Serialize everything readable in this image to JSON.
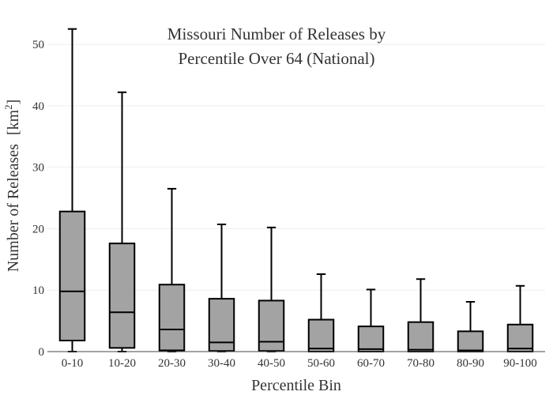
{
  "chart_data": {
    "type": "box",
    "title": [
      "Missouri Number of Releases by",
      "Percentile Over 64 (National)"
    ],
    "xlabel": "Percentile Bin",
    "ylabel": "Number of Releases",
    "ylabel_unit": "[km",
    "ylabel_unit_sup": "2",
    "ylabel_unit_close": "]",
    "ylim": [
      0,
      54
    ],
    "yticks": [
      0,
      10,
      20,
      30,
      40,
      50
    ],
    "grid": true,
    "categories": [
      "0-10",
      "10-20",
      "20-30",
      "30-40",
      "40-50",
      "50-60",
      "60-70",
      "70-80",
      "80-90",
      "90-100"
    ],
    "boxes": [
      {
        "min": 0,
        "q1": 1.8,
        "median": 9.8,
        "q3": 22.8,
        "max": 52.5
      },
      {
        "min": 0,
        "q1": 0.6,
        "median": 6.4,
        "q3": 17.6,
        "max": 42.2
      },
      {
        "min": 0,
        "q1": 0.2,
        "median": 3.6,
        "q3": 10.9,
        "max": 26.5
      },
      {
        "min": 0,
        "q1": 0.1,
        "median": 1.5,
        "q3": 8.6,
        "max": 20.7
      },
      {
        "min": 0,
        "q1": 0.1,
        "median": 1.6,
        "q3": 8.3,
        "max": 20.2
      },
      {
        "min": 0,
        "q1": 0.0,
        "median": 0.5,
        "q3": 5.2,
        "max": 12.6
      },
      {
        "min": 0,
        "q1": 0.0,
        "median": 0.4,
        "q3": 4.1,
        "max": 10.1
      },
      {
        "min": 0,
        "q1": 0.0,
        "median": 0.3,
        "q3": 4.8,
        "max": 11.8
      },
      {
        "min": 0,
        "q1": 0.0,
        "median": 0.2,
        "q3": 3.3,
        "max": 8.1
      },
      {
        "min": 0,
        "q1": 0.0,
        "median": 0.5,
        "q3": 4.4,
        "max": 10.7
      }
    ],
    "colors": {
      "box_fill": "#a3a3a3",
      "line": "#000000",
      "grid": "#eeeeee",
      "axis": "#444444"
    }
  }
}
